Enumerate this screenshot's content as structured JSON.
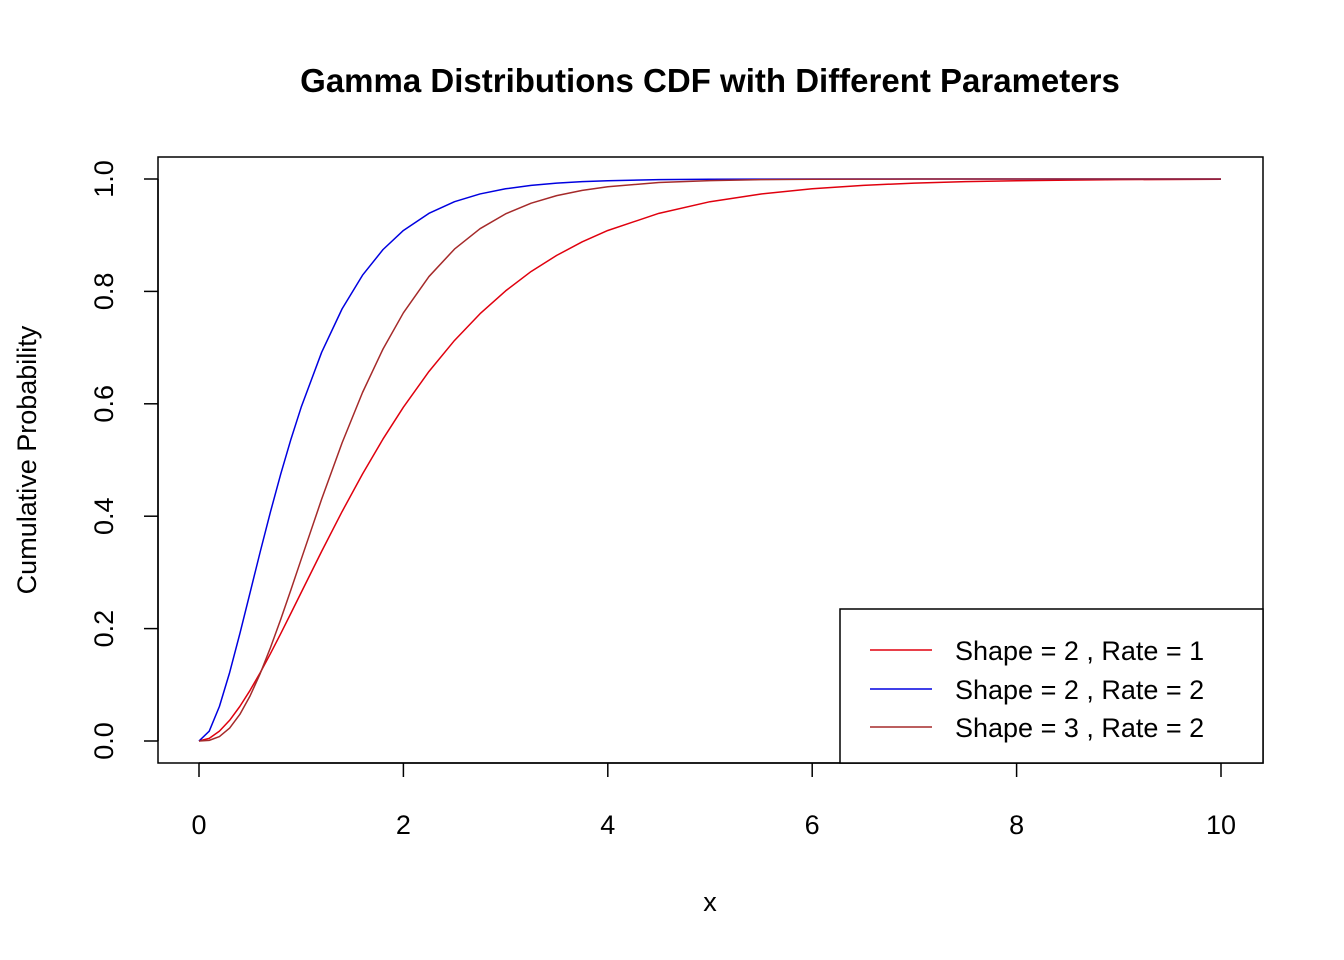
{
  "chart_data": {
    "type": "line",
    "title": "Gamma Distributions CDF with Different Parameters",
    "xlabel": "x",
    "ylabel": "Cumulative Probability",
    "xlim": [
      0,
      10
    ],
    "ylim": [
      0,
      1
    ],
    "x_ticks": [
      "0",
      "2",
      "4",
      "6",
      "8",
      "10"
    ],
    "y_ticks": [
      "0.0",
      "0.2",
      "0.4",
      "0.6",
      "0.8",
      "1.0"
    ],
    "grid": false,
    "legend_position": "bottom-right",
    "x": [
      0,
      0.1,
      0.2,
      0.3,
      0.4,
      0.5,
      0.6,
      0.7,
      0.8,
      0.9,
      1.0,
      1.2,
      1.4,
      1.6,
      1.8,
      2.0,
      2.25,
      2.5,
      2.75,
      3.0,
      3.25,
      3.5,
      3.75,
      4.0,
      4.5,
      5.0,
      5.5,
      6.0,
      6.5,
      7.0,
      7.5,
      8.0,
      8.5,
      9.0,
      9.5,
      10.0
    ],
    "series": [
      {
        "name": "Shape = 2 , Rate = 1",
        "color": "#E0000E",
        "values": [
          0,
          0.0047,
          0.0175,
          0.0369,
          0.0616,
          0.0902,
          0.1219,
          0.1558,
          0.1912,
          0.2275,
          0.2642,
          0.3374,
          0.4082,
          0.4751,
          0.5372,
          0.594,
          0.6575,
          0.7127,
          0.7603,
          0.8009,
          0.8355,
          0.8641,
          0.8882,
          0.9084,
          0.9389,
          0.9596,
          0.9734,
          0.9826,
          0.9887,
          0.9927,
          0.9953,
          0.997,
          0.9981,
          0.9988,
          0.9992,
          0.9995
        ]
      },
      {
        "name": "Shape = 2 , Rate = 2",
        "color": "#0000E0",
        "values": [
          0,
          0.0175,
          0.0616,
          0.1219,
          0.1912,
          0.2642,
          0.3374,
          0.4082,
          0.4751,
          0.5372,
          0.594,
          0.6916,
          0.7689,
          0.8288,
          0.8743,
          0.9084,
          0.9389,
          0.9596,
          0.9734,
          0.9826,
          0.9887,
          0.9927,
          0.9953,
          0.997,
          0.9988,
          0.9995,
          0.9998,
          0.9999,
          1.0,
          1.0,
          1.0,
          1.0,
          1.0,
          1.0,
          1.0,
          1.0
        ]
      },
      {
        "name": "Shape = 3 , Rate = 2",
        "color": "#A52A2A",
        "values": [
          0,
          0.0011,
          0.0079,
          0.0231,
          0.0474,
          0.0803,
          0.1205,
          0.1665,
          0.2166,
          0.2694,
          0.3233,
          0.4303,
          0.5305,
          0.6201,
          0.6973,
          0.7619,
          0.8264,
          0.8753,
          0.9116,
          0.938,
          0.957,
          0.9704,
          0.9797,
          0.9862,
          0.9938,
          0.9972,
          0.9988,
          0.9995,
          0.9998,
          0.9999,
          1.0,
          1.0,
          1.0,
          1.0,
          1.0,
          1.0
        ]
      }
    ]
  }
}
